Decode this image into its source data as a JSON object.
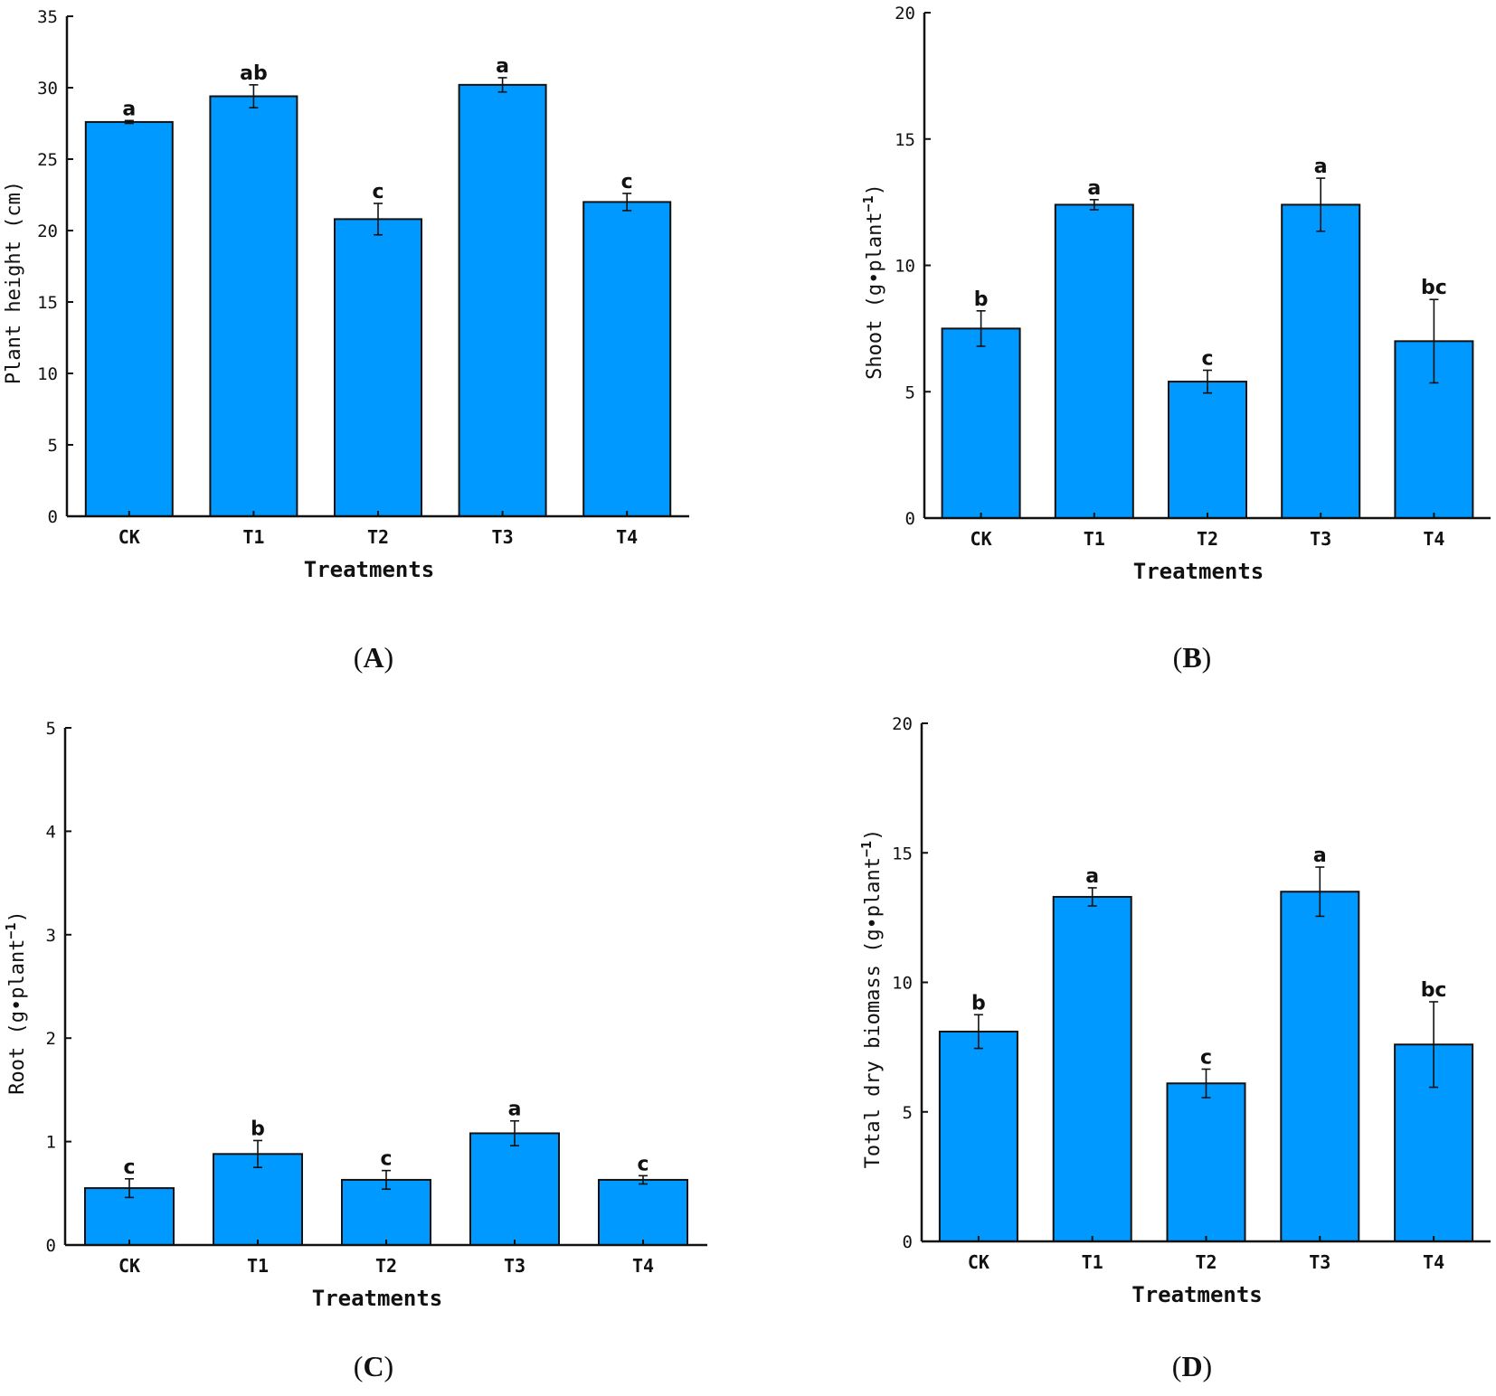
{
  "chart_data": [
    {
      "id": "A",
      "type": "bar",
      "panel_letter": "A",
      "categories": [
        "CK",
        "T1",
        "T2",
        "T3",
        "T4"
      ],
      "values": [
        27.6,
        29.4,
        20.8,
        30.2,
        22.0
      ],
      "errors": [
        0.1,
        0.8,
        1.1,
        0.5,
        0.6
      ],
      "significance": [
        "a",
        "ab",
        "c",
        "a",
        "c"
      ],
      "xlabel": "Treatments",
      "ylabel": "Plant height (cm)",
      "ylabel_sup": "",
      "ylabel_tail": "",
      "ylim": [
        0,
        35
      ],
      "yticks": [
        0,
        5,
        10,
        15,
        20,
        25,
        30,
        35
      ],
      "bar_color": "#0099ff"
    },
    {
      "id": "B",
      "type": "bar",
      "panel_letter": "B",
      "categories": [
        "CK",
        "T1",
        "T2",
        "T3",
        "T4"
      ],
      "values": [
        7.5,
        12.4,
        5.4,
        12.4,
        7.0
      ],
      "errors": [
        0.7,
        0.2,
        0.45,
        1.05,
        1.65
      ],
      "significance": [
        "b",
        "a",
        "c",
        "a",
        "bc"
      ],
      "xlabel": "Treatments",
      "ylabel": "Shoot (g•plant",
      "ylabel_sup": "−1",
      "ylabel_tail": ")",
      "ylim": [
        0,
        20
      ],
      "yticks": [
        0,
        5,
        10,
        15,
        20
      ],
      "bar_color": "#0099ff"
    },
    {
      "id": "C",
      "type": "bar",
      "panel_letter": "C",
      "categories": [
        "CK",
        "T1",
        "T2",
        "T3",
        "T4"
      ],
      "values": [
        0.55,
        0.88,
        0.63,
        1.08,
        0.63
      ],
      "errors": [
        0.09,
        0.13,
        0.09,
        0.12,
        0.04
      ],
      "significance": [
        "c",
        "b",
        "c",
        "a",
        "c"
      ],
      "xlabel": "Treatments",
      "ylabel": "Root (g•plant",
      "ylabel_sup": "−1",
      "ylabel_tail": ")",
      "ylim": [
        0,
        5
      ],
      "yticks": [
        0,
        1,
        2,
        3,
        4,
        5
      ],
      "bar_color": "#0099ff"
    },
    {
      "id": "D",
      "type": "bar",
      "panel_letter": "D",
      "categories": [
        "CK",
        "T1",
        "T2",
        "T3",
        "T4"
      ],
      "values": [
        8.1,
        13.3,
        6.1,
        13.5,
        7.6
      ],
      "errors": [
        0.65,
        0.35,
        0.55,
        0.95,
        1.65
      ],
      "significance": [
        "b",
        "a",
        "c",
        "a",
        "bc"
      ],
      "xlabel": "Treatments",
      "ylabel": "Total dry biomass (g•plant",
      "ylabel_sup": "−1",
      "ylabel_tail": ")",
      "ylim": [
        0,
        20
      ],
      "yticks": [
        0,
        5,
        10,
        15,
        20
      ],
      "bar_color": "#0099ff"
    }
  ]
}
